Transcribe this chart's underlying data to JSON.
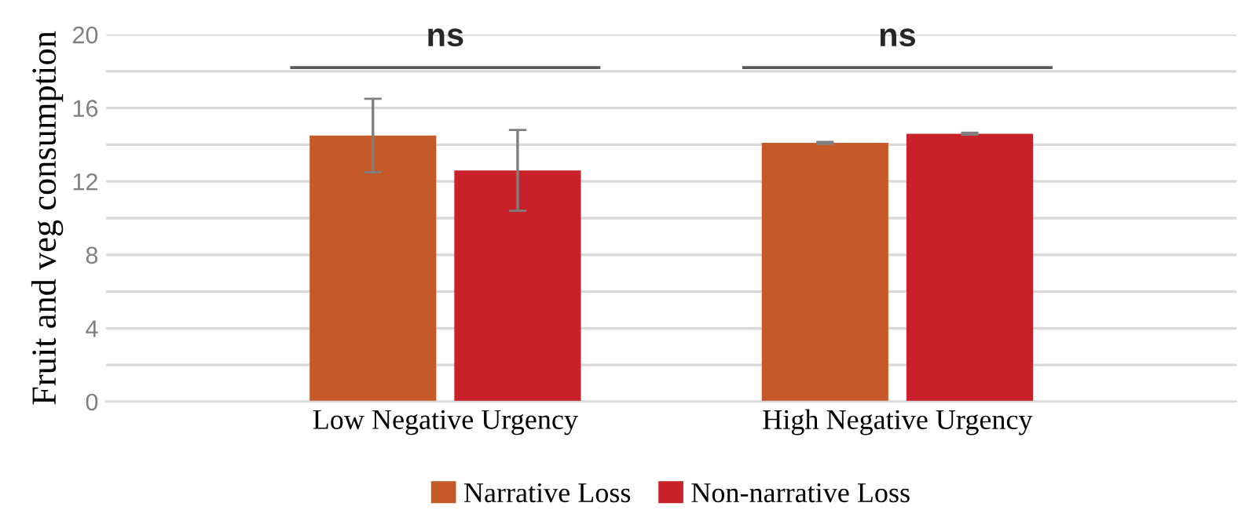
{
  "chart_data": {
    "type": "bar",
    "ylabel": "Fruit and veg consumption",
    "categories": [
      "Low Negative Urgency",
      "High Negative Urgency"
    ],
    "series": [
      {
        "name": "Narrative Loss",
        "color": "#c55a28",
        "values": [
          14.5,
          14.1
        ],
        "errors": [
          2.0,
          0.05
        ]
      },
      {
        "name": "Non-narrative Loss",
        "color": "#c8212a",
        "values": [
          12.6,
          14.6
        ],
        "errors": [
          2.2,
          0.05
        ]
      }
    ],
    "ylim": [
      0,
      20
    ],
    "yticks": [
      0,
      {
        "value": 2,
        "label": null
      },
      4,
      {
        "value": 6,
        "label": null
      },
      8,
      {
        "value": 10,
        "label": null
      },
      12,
      {
        "value": 14,
        "label": null
      },
      16,
      {
        "value": 18,
        "label": null
      },
      20
    ],
    "grid": "y",
    "legend": "bottom",
    "annotations": [
      "ns",
      "ns"
    ]
  }
}
